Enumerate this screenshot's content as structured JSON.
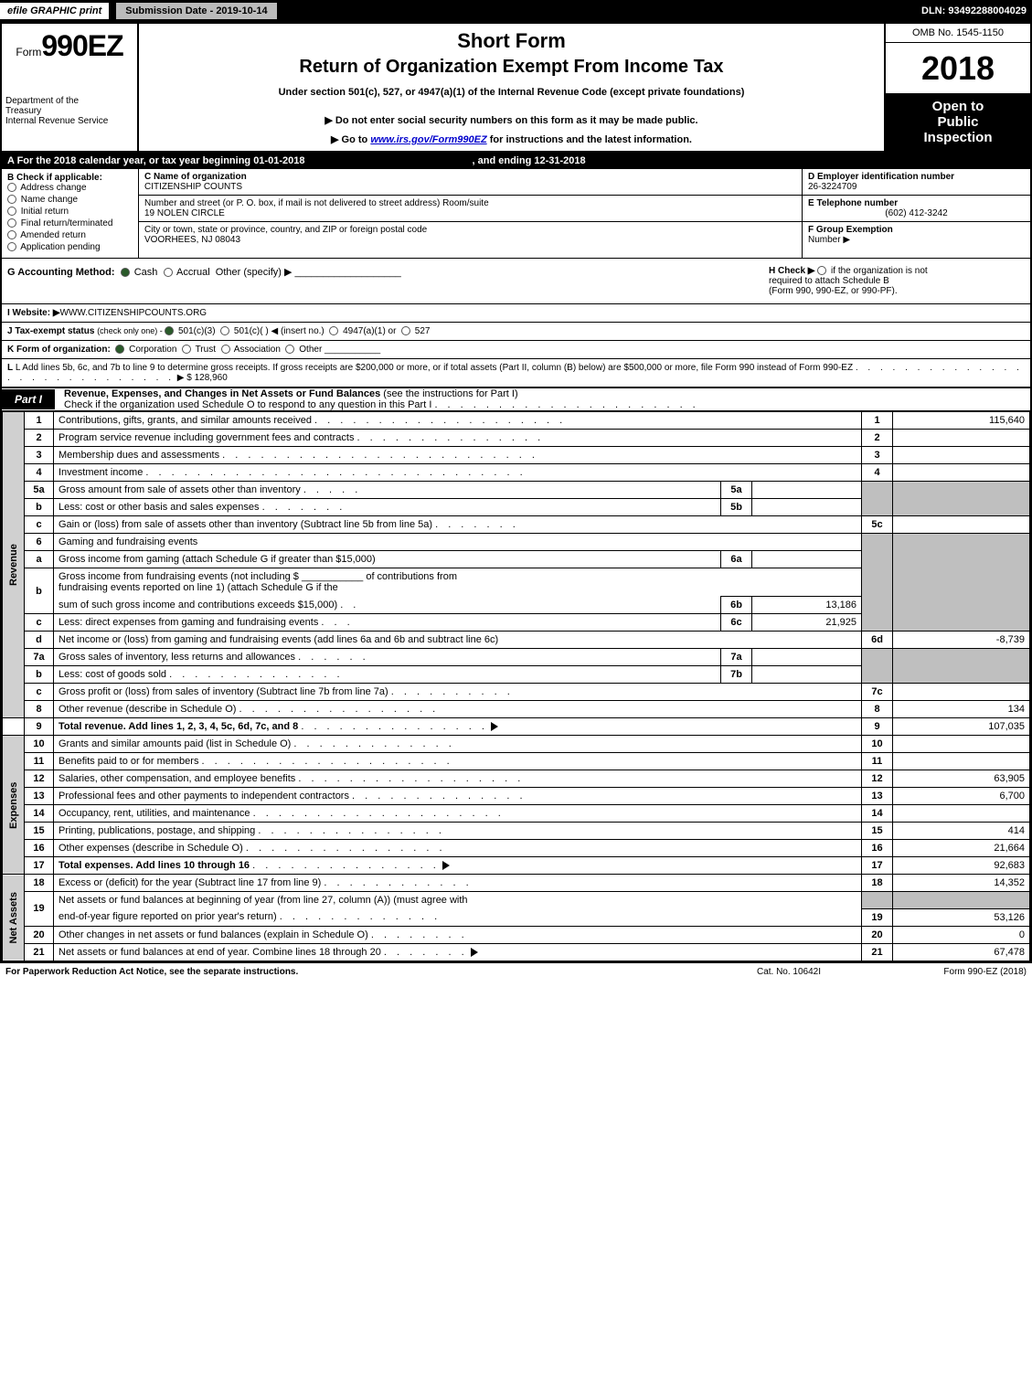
{
  "topbar": {
    "efg": "efile GRAPHIC print",
    "subdate": "Submission Date - 2019-10-14",
    "dln": "DLN: 93492288004029"
  },
  "header": {
    "form_prefix": "Form",
    "form_num": "990EZ",
    "dept1": "Department of the",
    "dept2": "Treasury",
    "dept3": "Internal Revenue Service",
    "sf": "Short Form",
    "roeit": "Return of Organization Exempt From Income Tax",
    "under": "Under section 501(c), 527, or 4947(a)(1) of the Internal Revenue Code (except private foundations)",
    "donot": "▶ Do not enter social security numbers on this form as it may be made public.",
    "goto_pre": "▶ Go to ",
    "goto_link": "www.irs.gov/Form990EZ",
    "goto_post": " for instructions and the latest information.",
    "omb": "OMB No. 1545-1150",
    "year": "2018",
    "inspect1": "Open to",
    "inspect2": "Public",
    "inspect3": "Inspection"
  },
  "rowA": {
    "text": "A  For the 2018 calendar year, or tax year beginning 01-01-2018",
    "ending": ", and ending 12-31-2018"
  },
  "colB": {
    "hdr": "B  Check if applicable:",
    "c1": "Address change",
    "c2": "Name change",
    "c3": "Initial return",
    "c4": "Final return/terminated",
    "c5": "Amended return",
    "c6": "Application pending"
  },
  "colMid": {
    "c_lbl": "C Name of organization",
    "c_val": "CITIZENSHIP COUNTS",
    "addr_lbl": "Number and street (or P. O. box, if mail is not delivered to street address)     Room/suite",
    "addr_val": "19 NOLEN CIRCLE",
    "city_lbl": "City or town, state or province, country, and ZIP or foreign postal code",
    "city_val": "VOORHEES, NJ  08043"
  },
  "colDEF": {
    "d_lbl": "D Employer identification number",
    "d_val": "26-3224709",
    "e_lbl": "E Telephone number",
    "e_val": "(602) 412-3242",
    "f_lbl": "F Group Exemption",
    "f_lbl2": "Number   ▶"
  },
  "rowG": {
    "lbl": "G Accounting Method:",
    "cash": "Cash",
    "accrual": "Accrual",
    "other": "Other (specify) ▶"
  },
  "rowH": {
    "l1": "H   Check ▶",
    "l2": "if the organization is not",
    "l3": "required to attach Schedule B",
    "l4": "(Form 990, 990-EZ, or 990-PF)."
  },
  "rowI": {
    "lbl": "I Website: ▶",
    "val": "WWW.CITIZENSHIPCOUNTS.ORG"
  },
  "rowJ": {
    "lbl": "J Tax-exempt status",
    "sub": "(check only one) - ",
    "o1": "501(c)(3)",
    "o2": "501(c)(  ) ◀ (insert no.)",
    "o3": "4947(a)(1) or",
    "o4": "527"
  },
  "rowK": {
    "lbl": "K Form of organization:",
    "o1": "Corporation",
    "o2": "Trust",
    "o3": "Association",
    "o4": "Other"
  },
  "rowL": {
    "txt": "L Add lines 5b, 6c, and 7b to line 9 to determine gross receipts. If gross receipts are $200,000 or more, or if total assets (Part II, column (B) below) are $500,000 or more, file Form 990 instead of Form 990-EZ",
    "dots": ". . . . . . . . . . . . . . . . . . . . . . . . . . . .",
    "val": "▶ $ 128,960"
  },
  "part1": {
    "hdr": "Part I",
    "title": "Revenue, Expenses, and Changes in Net Assets or Fund Balances",
    "sub": "(see the instructions for Part I)",
    "sub2": "Check if the organization used Schedule O to respond to any question in this Part I"
  },
  "sections": {
    "rev": "Revenue",
    "exp": "Expenses",
    "na": "Net Assets"
  },
  "lines": {
    "1": {
      "n": "1",
      "d": "Contributions, gifts, grants, and similar amounts received",
      "box": "1",
      "amt": "115,640"
    },
    "2": {
      "n": "2",
      "d": "Program service revenue including government fees and contracts",
      "box": "2",
      "amt": ""
    },
    "3": {
      "n": "3",
      "d": "Membership dues and assessments",
      "box": "3",
      "amt": ""
    },
    "4": {
      "n": "4",
      "d": "Investment income",
      "box": "4",
      "amt": ""
    },
    "5a": {
      "n": "5a",
      "d": "Gross amount from sale of assets other than inventory",
      "mb": "5a",
      "mv": ""
    },
    "5b": {
      "n": "b",
      "d": "Less: cost or other basis and sales expenses",
      "mb": "5b",
      "mv": ""
    },
    "5c": {
      "n": "c",
      "d": "Gain or (loss) from sale of assets other than inventory (Subtract line 5b from line 5a)",
      "box": "5c",
      "amt": ""
    },
    "6": {
      "n": "6",
      "d": "Gaming and fundraising events"
    },
    "6a": {
      "n": "a",
      "d": "Gross income from gaming (attach Schedule G if greater than $15,000)",
      "mb": "6a",
      "mv": ""
    },
    "6b": {
      "n": "b",
      "d1": "Gross income from fundraising events (not including $",
      "d2": "of contributions from",
      "d3": "fundraising events reported on line 1) (attach Schedule G if the",
      "d4": "sum of such gross income and contributions exceeds $15,000)",
      "mb": "6b",
      "mv": "13,186"
    },
    "6c": {
      "n": "c",
      "d": "Less: direct expenses from gaming and fundraising events",
      "mb": "6c",
      "mv": "21,925"
    },
    "6d": {
      "n": "d",
      "d": "Net income or (loss) from gaming and fundraising events (add lines 6a and 6b and subtract line 6c)",
      "box": "6d",
      "amt": "-8,739"
    },
    "7a": {
      "n": "7a",
      "d": "Gross sales of inventory, less returns and allowances",
      "mb": "7a",
      "mv": ""
    },
    "7b": {
      "n": "b",
      "d": "Less: cost of goods sold",
      "mb": "7b",
      "mv": ""
    },
    "7c": {
      "n": "c",
      "d": "Gross profit or (loss) from sales of inventory (Subtract line 7b from line 7a)",
      "box": "7c",
      "amt": ""
    },
    "8": {
      "n": "8",
      "d": "Other revenue (describe in Schedule O)",
      "box": "8",
      "amt": "134"
    },
    "9": {
      "n": "9",
      "d": "Total revenue. Add lines 1, 2, 3, 4, 5c, 6d, 7c, and 8",
      "box": "9",
      "amt": "107,035"
    },
    "10": {
      "n": "10",
      "d": "Grants and similar amounts paid (list in Schedule O)",
      "box": "10",
      "amt": ""
    },
    "11": {
      "n": "11",
      "d": "Benefits paid to or for members",
      "box": "11",
      "amt": ""
    },
    "12": {
      "n": "12",
      "d": "Salaries, other compensation, and employee benefits",
      "box": "12",
      "amt": "63,905"
    },
    "13": {
      "n": "13",
      "d": "Professional fees and other payments to independent contractors",
      "box": "13",
      "amt": "6,700"
    },
    "14": {
      "n": "14",
      "d": "Occupancy, rent, utilities, and maintenance",
      "box": "14",
      "amt": ""
    },
    "15": {
      "n": "15",
      "d": "Printing, publications, postage, and shipping",
      "box": "15",
      "amt": "414"
    },
    "16": {
      "n": "16",
      "d": "Other expenses (describe in Schedule O)",
      "box": "16",
      "amt": "21,664"
    },
    "17": {
      "n": "17",
      "d": "Total expenses. Add lines 10 through 16",
      "box": "17",
      "amt": "92,683"
    },
    "18": {
      "n": "18",
      "d": "Excess or (deficit) for the year (Subtract line 17 from line 9)",
      "box": "18",
      "amt": "14,352"
    },
    "19": {
      "n": "19",
      "d1": "Net assets or fund balances at beginning of year (from line 27, column (A)) (must agree with",
      "d2": "end-of-year figure reported on prior year's return)",
      "box": "19",
      "amt": "53,126"
    },
    "20": {
      "n": "20",
      "d": "Other changes in net assets or fund balances (explain in Schedule O)",
      "box": "20",
      "amt": "0"
    },
    "21": {
      "n": "21",
      "d": "Net assets or fund balances at end of year. Combine lines 18 through 20",
      "box": "21",
      "amt": "67,478"
    }
  },
  "footer": {
    "l": "For Paperwork Reduction Act Notice, see the separate instructions.",
    "c": "Cat. No. 10642I",
    "r": "Form 990-EZ (2018)"
  }
}
